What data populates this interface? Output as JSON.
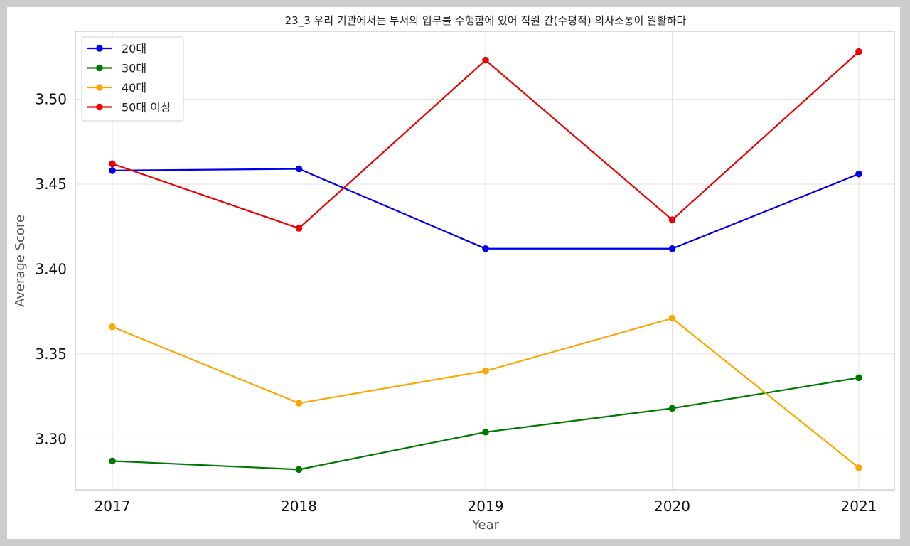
{
  "chart_data": {
    "type": "line",
    "title": "23_3 우리 기관에서는 부서의 업무를 수행함에 있어 직원 간(수평적) 의사소통이 원활하다",
    "xlabel": "Year",
    "ylabel": "Average Score",
    "x": [
      2017,
      2018,
      2019,
      2020,
      2021
    ],
    "x_tick_labels": [
      "2017",
      "2018",
      "2019",
      "2020",
      "2021"
    ],
    "ylim": [
      3.27,
      3.54
    ],
    "y_ticks": [
      3.3,
      3.35,
      3.4,
      3.45,
      3.5
    ],
    "y_tick_labels": [
      "3.30",
      "3.35",
      "3.40",
      "3.45",
      "3.50"
    ],
    "grid": true,
    "legend_position": "top-left",
    "series": [
      {
        "name": "20대",
        "color": "#0000ee",
        "values": [
          3.458,
          3.459,
          3.412,
          3.412,
          3.456
        ]
      },
      {
        "name": "30대",
        "color": "#007700",
        "values": [
          3.287,
          3.282,
          3.304,
          3.318,
          3.336
        ]
      },
      {
        "name": "40대",
        "color": "#ffa500",
        "values": [
          3.366,
          3.321,
          3.34,
          3.371,
          3.283
        ]
      },
      {
        "name": "50대 이상",
        "color": "#ee0000",
        "values": [
          3.462,
          3.424,
          3.523,
          3.429,
          3.528
        ]
      }
    ]
  }
}
